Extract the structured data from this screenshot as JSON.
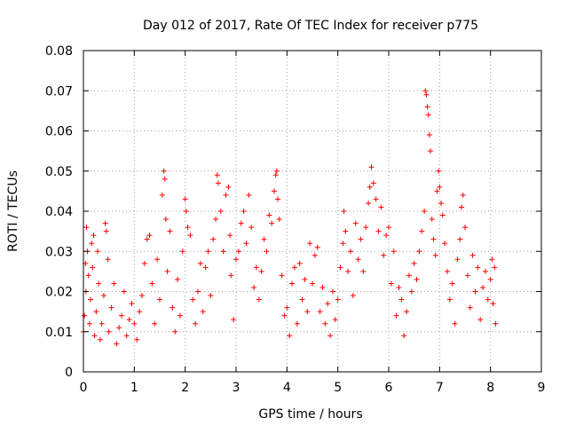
{
  "chart_data": {
    "type": "scatter",
    "title": "Day 012 of 2017, Rate Of TEC Index for receiver p775",
    "xlabel": "GPS time / hours",
    "ylabel": "ROTI / TECUs",
    "xlim": [
      0,
      9
    ],
    "ylim": [
      0,
      0.08
    ],
    "x_ticks": [
      0,
      1,
      2,
      3,
      4,
      5,
      6,
      7,
      8,
      9
    ],
    "y_ticks": [
      0,
      0.01,
      0.02,
      0.03,
      0.04,
      0.05,
      0.06,
      0.07,
      0.08
    ],
    "x_tick_labels": [
      "0",
      "1",
      "2",
      "3",
      "4",
      "5",
      "6",
      "7",
      "8",
      "9"
    ],
    "y_tick_labels": [
      "0",
      "0.01",
      "0.02",
      "0.03",
      "0.04",
      "0.05",
      "0.06",
      "0.07",
      "0.08"
    ],
    "grid": true,
    "marker": "plus",
    "color": "#ff0000",
    "series": [
      {
        "name": "ROTI",
        "points": [
          [
            0.0,
            0.01
          ],
          [
            0.02,
            0.014
          ],
          [
            0.04,
            0.027
          ],
          [
            0.05,
            0.02
          ],
          [
            0.06,
            0.036
          ],
          [
            0.08,
            0.03
          ],
          [
            0.1,
            0.024
          ],
          [
            0.12,
            0.012
          ],
          [
            0.14,
            0.018
          ],
          [
            0.16,
            0.032
          ],
          [
            0.18,
            0.026
          ],
          [
            0.2,
            0.034
          ],
          [
            0.22,
            0.009
          ],
          [
            0.25,
            0.015
          ],
          [
            0.28,
            0.03
          ],
          [
            0.3,
            0.022
          ],
          [
            0.33,
            0.008
          ],
          [
            0.36,
            0.012
          ],
          [
            0.4,
            0.019
          ],
          [
            0.43,
            0.037
          ],
          [
            0.45,
            0.035
          ],
          [
            0.48,
            0.028
          ],
          [
            0.5,
            0.01
          ],
          [
            0.55,
            0.016
          ],
          [
            0.6,
            0.022
          ],
          [
            0.65,
            0.007
          ],
          [
            0.7,
            0.011
          ],
          [
            0.75,
            0.014
          ],
          [
            0.8,
            0.02
          ],
          [
            0.85,
            0.009
          ],
          [
            0.9,
            0.013
          ],
          [
            0.95,
            0.017
          ],
          [
            1.0,
            0.012
          ],
          [
            1.05,
            0.008
          ],
          [
            1.1,
            0.015
          ],
          [
            1.15,
            0.019
          ],
          [
            1.2,
            0.027
          ],
          [
            1.25,
            0.033
          ],
          [
            1.3,
            0.034
          ],
          [
            1.35,
            0.022
          ],
          [
            1.4,
            0.012
          ],
          [
            1.45,
            0.028
          ],
          [
            1.5,
            0.018
          ],
          [
            1.55,
            0.044
          ],
          [
            1.58,
            0.05
          ],
          [
            1.6,
            0.048
          ],
          [
            1.62,
            0.038
          ],
          [
            1.65,
            0.025
          ],
          [
            1.7,
            0.035
          ],
          [
            1.75,
            0.016
          ],
          [
            1.8,
            0.01
          ],
          [
            1.85,
            0.023
          ],
          [
            1.9,
            0.014
          ],
          [
            1.95,
            0.03
          ],
          [
            2.0,
            0.043
          ],
          [
            2.02,
            0.04
          ],
          [
            2.05,
            0.036
          ],
          [
            2.1,
            0.034
          ],
          [
            2.15,
            0.018
          ],
          [
            2.2,
            0.012
          ],
          [
            2.25,
            0.02
          ],
          [
            2.3,
            0.027
          ],
          [
            2.35,
            0.015
          ],
          [
            2.4,
            0.026
          ],
          [
            2.45,
            0.03
          ],
          [
            2.5,
            0.019
          ],
          [
            2.55,
            0.033
          ],
          [
            2.6,
            0.038
          ],
          [
            2.63,
            0.049
          ],
          [
            2.65,
            0.047
          ],
          [
            2.7,
            0.04
          ],
          [
            2.75,
            0.03
          ],
          [
            2.8,
            0.044
          ],
          [
            2.85,
            0.046
          ],
          [
            2.88,
            0.034
          ],
          [
            2.9,
            0.024
          ],
          [
            2.95,
            0.013
          ],
          [
            3.0,
            0.028
          ],
          [
            3.05,
            0.03
          ],
          [
            3.1,
            0.037
          ],
          [
            3.15,
            0.04
          ],
          [
            3.2,
            0.032
          ],
          [
            3.25,
            0.044
          ],
          [
            3.3,
            0.036
          ],
          [
            3.35,
            0.021
          ],
          [
            3.4,
            0.026
          ],
          [
            3.45,
            0.018
          ],
          [
            3.5,
            0.025
          ],
          [
            3.55,
            0.033
          ],
          [
            3.6,
            0.03
          ],
          [
            3.65,
            0.039
          ],
          [
            3.7,
            0.037
          ],
          [
            3.75,
            0.045
          ],
          [
            3.78,
            0.049
          ],
          [
            3.8,
            0.05
          ],
          [
            3.82,
            0.043
          ],
          [
            3.85,
            0.038
          ],
          [
            3.9,
            0.024
          ],
          [
            3.95,
            0.014
          ],
          [
            4.0,
            0.016
          ],
          [
            4.05,
            0.009
          ],
          [
            4.1,
            0.022
          ],
          [
            4.15,
            0.026
          ],
          [
            4.2,
            0.012
          ],
          [
            4.25,
            0.027
          ],
          [
            4.3,
            0.018
          ],
          [
            4.35,
            0.023
          ],
          [
            4.4,
            0.015
          ],
          [
            4.45,
            0.032
          ],
          [
            4.5,
            0.022
          ],
          [
            4.55,
            0.029
          ],
          [
            4.6,
            0.031
          ],
          [
            4.65,
            0.015
          ],
          [
            4.7,
            0.021
          ],
          [
            4.75,
            0.012
          ],
          [
            4.8,
            0.017
          ],
          [
            4.85,
            0.009
          ],
          [
            4.9,
            0.02
          ],
          [
            4.95,
            0.013
          ],
          [
            5.0,
            0.018
          ],
          [
            5.05,
            0.026
          ],
          [
            5.1,
            0.032
          ],
          [
            5.12,
            0.04
          ],
          [
            5.15,
            0.035
          ],
          [
            5.2,
            0.025
          ],
          [
            5.25,
            0.03
          ],
          [
            5.3,
            0.019
          ],
          [
            5.35,
            0.037
          ],
          [
            5.4,
            0.028
          ],
          [
            5.45,
            0.033
          ],
          [
            5.5,
            0.025
          ],
          [
            5.55,
            0.036
          ],
          [
            5.6,
            0.042
          ],
          [
            5.63,
            0.046
          ],
          [
            5.66,
            0.051
          ],
          [
            5.7,
            0.047
          ],
          [
            5.75,
            0.043
          ],
          [
            5.8,
            0.035
          ],
          [
            5.85,
            0.041
          ],
          [
            5.9,
            0.029
          ],
          [
            5.95,
            0.034
          ],
          [
            6.0,
            0.036
          ],
          [
            6.05,
            0.022
          ],
          [
            6.1,
            0.03
          ],
          [
            6.15,
            0.014
          ],
          [
            6.2,
            0.021
          ],
          [
            6.25,
            0.018
          ],
          [
            6.3,
            0.009
          ],
          [
            6.35,
            0.015
          ],
          [
            6.4,
            0.024
          ],
          [
            6.45,
            0.02
          ],
          [
            6.5,
            0.027
          ],
          [
            6.55,
            0.023
          ],
          [
            6.6,
            0.03
          ],
          [
            6.65,
            0.035
          ],
          [
            6.7,
            0.04
          ],
          [
            6.72,
            0.07
          ],
          [
            6.74,
            0.069
          ],
          [
            6.76,
            0.066
          ],
          [
            6.78,
            0.064
          ],
          [
            6.8,
            0.059
          ],
          [
            6.82,
            0.055
          ],
          [
            6.85,
            0.038
          ],
          [
            6.88,
            0.033
          ],
          [
            6.92,
            0.029
          ],
          [
            6.95,
            0.045
          ],
          [
            6.98,
            0.05
          ],
          [
            7.0,
            0.046
          ],
          [
            7.03,
            0.042
          ],
          [
            7.06,
            0.039
          ],
          [
            7.1,
            0.032
          ],
          [
            7.15,
            0.025
          ],
          [
            7.2,
            0.018
          ],
          [
            7.25,
            0.022
          ],
          [
            7.3,
            0.012
          ],
          [
            7.35,
            0.028
          ],
          [
            7.4,
            0.033
          ],
          [
            7.43,
            0.041
          ],
          [
            7.46,
            0.044
          ],
          [
            7.5,
            0.036
          ],
          [
            7.55,
            0.024
          ],
          [
            7.6,
            0.016
          ],
          [
            7.65,
            0.029
          ],
          [
            7.7,
            0.02
          ],
          [
            7.75,
            0.026
          ],
          [
            7.8,
            0.013
          ],
          [
            7.85,
            0.021
          ],
          [
            7.9,
            0.025
          ],
          [
            7.95,
            0.018
          ],
          [
            8.0,
            0.023
          ],
          [
            8.03,
            0.028
          ],
          [
            8.05,
            0.017
          ],
          [
            8.08,
            0.026
          ],
          [
            8.1,
            0.012
          ]
        ]
      }
    ]
  }
}
